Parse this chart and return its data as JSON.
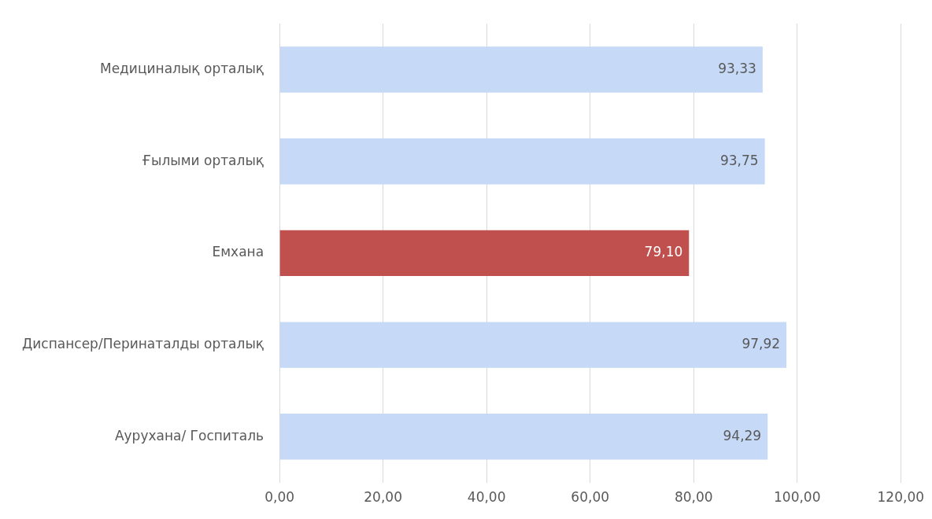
{
  "chart_data": {
    "type": "bar",
    "orientation": "horizontal",
    "categories": [
      "Медициналық орталық",
      "Ғылыми орталық",
      "Емхана",
      "Диспансер/Перинаталды орталық",
      "Аурухана/ Госпиталь"
    ],
    "values": [
      93.33,
      93.75,
      79.1,
      97.92,
      94.29
    ],
    "colors": [
      "#c6d9f7",
      "#c6d9f7",
      "#c0504d",
      "#c6d9f7",
      "#c6d9f7"
    ],
    "value_labels": [
      "93,33",
      "93,75",
      "79,10",
      "97,92",
      "94,29"
    ],
    "xlim": [
      0,
      120
    ],
    "xticks": [
      {
        "value": 0,
        "label": "0,00"
      },
      {
        "value": 20,
        "label": "20,00"
      },
      {
        "value": 40,
        "label": "40,00"
      },
      {
        "value": 60,
        "label": "60,00"
      },
      {
        "value": 80,
        "label": "80,00"
      },
      {
        "value": 100,
        "label": "100,00"
      },
      {
        "value": 120,
        "label": "120,00"
      }
    ],
    "grid": "x",
    "legend": false
  }
}
